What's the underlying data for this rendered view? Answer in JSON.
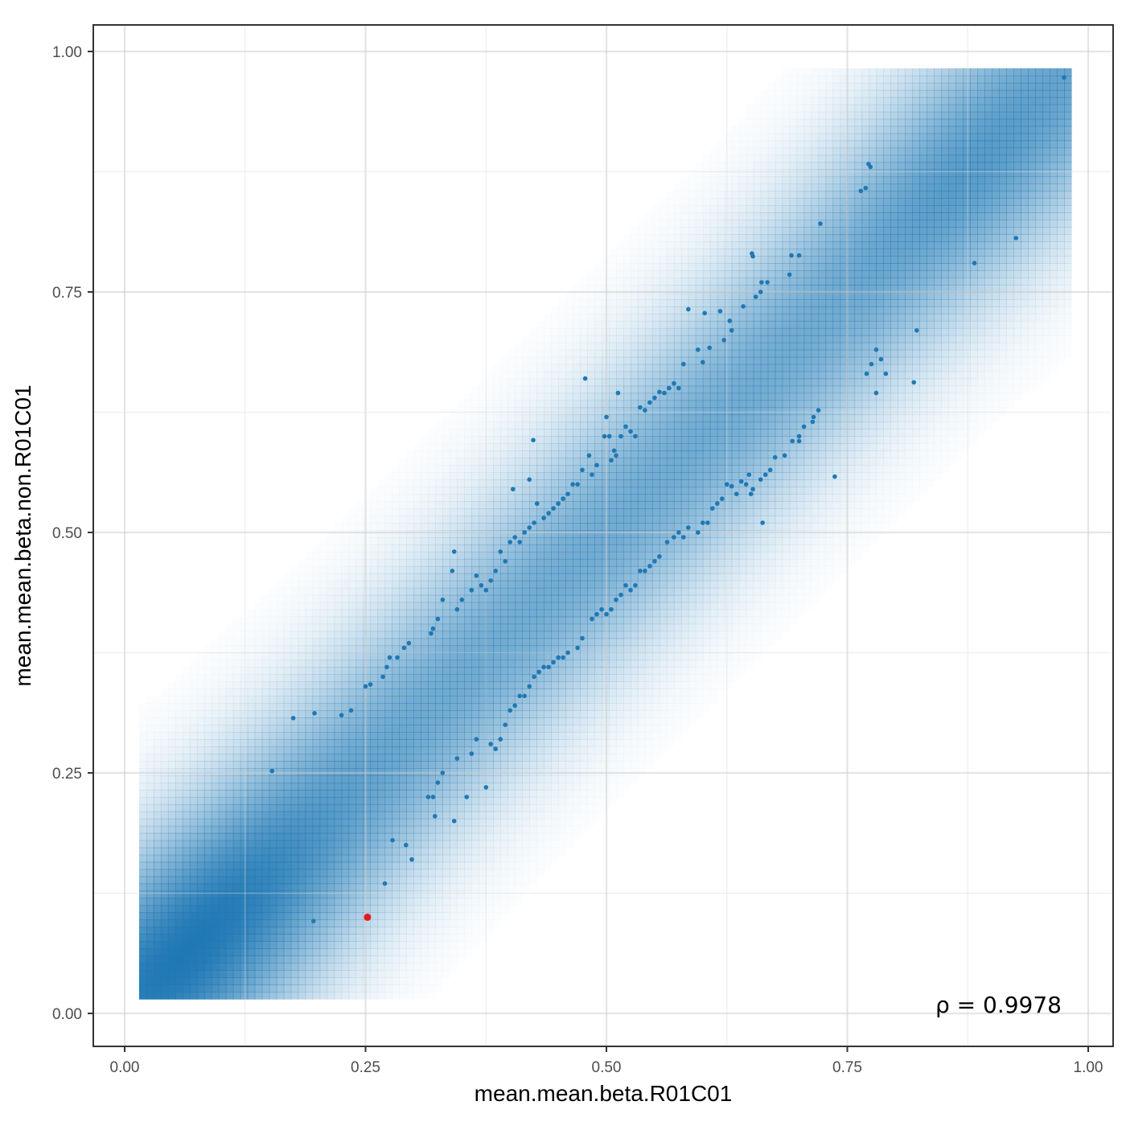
{
  "chart_data": {
    "type": "scatter",
    "title": "",
    "xlabel": "mean.mean.beta.R01C01",
    "ylabel": "mean.mean.beta.non.R01C01",
    "xlim": [
      -0.033,
      1.027
    ],
    "ylim": [
      -0.033,
      1.028
    ],
    "x_ticks": [
      "0.00",
      "0.25",
      "0.50",
      "0.75",
      "1.00"
    ],
    "y_ticks": [
      "0.00",
      "0.25",
      "0.50",
      "0.75",
      "1.00"
    ],
    "x_tick_values": [
      0,
      0.25,
      0.5,
      0.75,
      1.0
    ],
    "y_tick_values": [
      0,
      0.25,
      0.5,
      0.75,
      1.0
    ],
    "grid": true,
    "annotation": "ρ = 0.9978",
    "density_background": {
      "description": "smoothed 2D density of all points, concentrated along the diagonal, densest near (0.06, 0.06)",
      "x_range": [
        0.015,
        0.98
      ],
      "y_range": [
        0.015,
        0.975
      ],
      "bandwidth": 0.075,
      "color": "#1f78b4"
    },
    "series": [
      {
        "color": "#1f78b4",
        "points": [
          [
            0.975,
            0.973
          ],
          [
            0.925,
            0.806
          ],
          [
            0.882,
            0.78
          ],
          [
            0.822,
            0.71
          ],
          [
            0.819,
            0.656
          ],
          [
            0.774,
            0.88
          ],
          [
            0.772,
            0.883
          ],
          [
            0.769,
            0.858
          ],
          [
            0.764,
            0.855
          ],
          [
            0.722,
            0.821
          ],
          [
            0.7,
            0.788
          ],
          [
            0.692,
            0.788
          ],
          [
            0.69,
            0.768
          ],
          [
            0.652,
            0.787
          ],
          [
            0.651,
            0.79
          ],
          [
            0.667,
            0.76
          ],
          [
            0.661,
            0.76
          ],
          [
            0.66,
            0.75
          ],
          [
            0.655,
            0.745
          ],
          [
            0.642,
            0.735
          ],
          [
            0.628,
            0.72
          ],
          [
            0.63,
            0.71
          ],
          [
            0.618,
            0.73
          ],
          [
            0.622,
            0.7
          ],
          [
            0.607,
            0.692
          ],
          [
            0.602,
            0.728
          ],
          [
            0.6,
            0.677
          ],
          [
            0.595,
            0.69
          ],
          [
            0.585,
            0.732
          ],
          [
            0.58,
            0.675
          ],
          [
            0.575,
            0.65
          ],
          [
            0.57,
            0.655
          ],
          [
            0.565,
            0.65
          ],
          [
            0.56,
            0.645
          ],
          [
            0.555,
            0.646
          ],
          [
            0.55,
            0.64
          ],
          [
            0.545,
            0.635
          ],
          [
            0.54,
            0.627
          ],
          [
            0.535,
            0.63
          ],
          [
            0.53,
            0.6
          ],
          [
            0.525,
            0.605
          ],
          [
            0.52,
            0.61
          ],
          [
            0.515,
            0.6
          ],
          [
            0.512,
            0.645
          ],
          [
            0.51,
            0.58
          ],
          [
            0.508,
            0.585
          ],
          [
            0.505,
            0.575
          ],
          [
            0.503,
            0.6
          ],
          [
            0.5,
            0.62
          ],
          [
            0.498,
            0.6
          ],
          [
            0.49,
            0.57
          ],
          [
            0.485,
            0.56
          ],
          [
            0.482,
            0.58
          ],
          [
            0.478,
            0.66
          ],
          [
            0.475,
            0.565
          ],
          [
            0.47,
            0.55
          ],
          [
            0.465,
            0.55
          ],
          [
            0.46,
            0.54
          ],
          [
            0.455,
            0.535
          ],
          [
            0.45,
            0.53
          ],
          [
            0.445,
            0.525
          ],
          [
            0.44,
            0.52
          ],
          [
            0.435,
            0.515
          ],
          [
            0.428,
            0.53
          ],
          [
            0.425,
            0.51
          ],
          [
            0.42,
            0.505
          ],
          [
            0.415,
            0.5
          ],
          [
            0.41,
            0.49
          ],
          [
            0.405,
            0.495
          ],
          [
            0.403,
            0.545
          ],
          [
            0.424,
            0.596
          ],
          [
            0.42,
            0.555
          ],
          [
            0.4,
            0.49
          ],
          [
            0.395,
            0.47
          ],
          [
            0.39,
            0.48
          ],
          [
            0.385,
            0.46
          ],
          [
            0.38,
            0.45
          ],
          [
            0.375,
            0.44
          ],
          [
            0.37,
            0.445
          ],
          [
            0.365,
            0.455
          ],
          [
            0.36,
            0.44
          ],
          [
            0.35,
            0.43
          ],
          [
            0.345,
            0.42
          ],
          [
            0.34,
            0.46
          ],
          [
            0.342,
            0.48
          ],
          [
            0.33,
            0.43
          ],
          [
            0.325,
            0.41
          ],
          [
            0.32,
            0.4
          ],
          [
            0.318,
            0.395
          ],
          [
            0.295,
            0.385
          ],
          [
            0.29,
            0.38
          ],
          [
            0.283,
            0.37
          ],
          [
            0.275,
            0.37
          ],
          [
            0.272,
            0.36
          ],
          [
            0.268,
            0.35
          ],
          [
            0.255,
            0.342
          ],
          [
            0.25,
            0.34
          ],
          [
            0.235,
            0.315
          ],
          [
            0.225,
            0.31
          ],
          [
            0.197,
            0.312
          ],
          [
            0.175,
            0.307
          ],
          [
            0.153,
            0.252
          ],
          [
            0.196,
            0.096
          ],
          [
            0.737,
            0.558
          ],
          [
            0.72,
            0.627
          ],
          [
            0.714,
            0.615
          ],
          [
            0.705,
            0.61
          ],
          [
            0.7,
            0.595
          ],
          [
            0.693,
            0.595
          ],
          [
            0.685,
            0.58
          ],
          [
            0.675,
            0.578
          ],
          [
            0.665,
            0.56
          ],
          [
            0.66,
            0.555
          ],
          [
            0.652,
            0.545
          ],
          [
            0.65,
            0.54
          ],
          [
            0.648,
            0.56
          ],
          [
            0.645,
            0.55
          ],
          [
            0.64,
            0.553
          ],
          [
            0.635,
            0.54
          ],
          [
            0.63,
            0.548
          ],
          [
            0.625,
            0.55
          ],
          [
            0.62,
            0.535
          ],
          [
            0.615,
            0.53
          ],
          [
            0.61,
            0.525
          ],
          [
            0.605,
            0.51
          ],
          [
            0.6,
            0.51
          ],
          [
            0.595,
            0.5
          ],
          [
            0.585,
            0.505
          ],
          [
            0.58,
            0.495
          ],
          [
            0.575,
            0.5
          ],
          [
            0.57,
            0.495
          ],
          [
            0.563,
            0.49
          ],
          [
            0.555,
            0.475
          ],
          [
            0.55,
            0.47
          ],
          [
            0.545,
            0.465
          ],
          [
            0.54,
            0.46
          ],
          [
            0.535,
            0.46
          ],
          [
            0.53,
            0.445
          ],
          [
            0.525,
            0.44
          ],
          [
            0.52,
            0.445
          ],
          [
            0.515,
            0.435
          ],
          [
            0.51,
            0.43
          ],
          [
            0.505,
            0.42
          ],
          [
            0.5,
            0.415
          ],
          [
            0.495,
            0.42
          ],
          [
            0.49,
            0.415
          ],
          [
            0.485,
            0.41
          ],
          [
            0.475,
            0.39
          ],
          [
            0.47,
            0.38
          ],
          [
            0.46,
            0.375
          ],
          [
            0.455,
            0.37
          ],
          [
            0.45,
            0.37
          ],
          [
            0.445,
            0.365
          ],
          [
            0.44,
            0.36
          ],
          [
            0.435,
            0.36
          ],
          [
            0.43,
            0.355
          ],
          [
            0.425,
            0.35
          ],
          [
            0.42,
            0.34
          ],
          [
            0.415,
            0.33
          ],
          [
            0.41,
            0.33
          ],
          [
            0.405,
            0.32
          ],
          [
            0.4,
            0.315
          ],
          [
            0.395,
            0.3
          ],
          [
            0.39,
            0.285
          ],
          [
            0.385,
            0.275
          ],
          [
            0.38,
            0.28
          ],
          [
            0.375,
            0.235
          ],
          [
            0.365,
            0.285
          ],
          [
            0.36,
            0.27
          ],
          [
            0.355,
            0.225
          ],
          [
            0.345,
            0.265
          ],
          [
            0.342,
            0.2
          ],
          [
            0.33,
            0.25
          ],
          [
            0.325,
            0.24
          ],
          [
            0.32,
            0.225
          ],
          [
            0.315,
            0.225
          ],
          [
            0.322,
            0.205
          ],
          [
            0.298,
            0.16
          ],
          [
            0.292,
            0.175
          ],
          [
            0.278,
            0.18
          ],
          [
            0.27,
            0.135
          ],
          [
            0.662,
            0.51
          ],
          [
            0.67,
            0.565
          ],
          [
            0.7,
            0.6
          ],
          [
            0.715,
            0.62
          ],
          [
            0.775,
            0.675
          ],
          [
            0.78,
            0.69
          ],
          [
            0.785,
            0.68
          ],
          [
            0.79,
            0.665
          ],
          [
            0.78,
            0.645
          ],
          [
            0.77,
            0.665
          ]
        ]
      },
      {
        "color": "#e31a1c",
        "highlight": true,
        "points": [
          [
            0.252,
            0.1
          ]
        ]
      }
    ]
  }
}
